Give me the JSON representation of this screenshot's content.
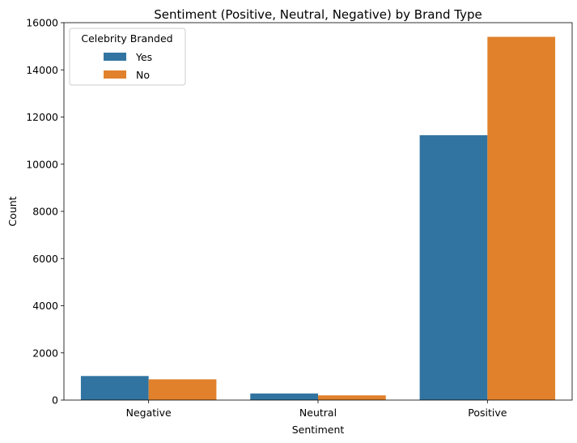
{
  "chart_data": {
    "type": "bar",
    "title": "Sentiment (Positive, Neutral, Negative) by Brand Type",
    "xlabel": "Sentiment",
    "ylabel": "Count",
    "categories": [
      "Negative",
      "Neutral",
      "Positive"
    ],
    "series": [
      {
        "name": "Yes",
        "color": "#3274a1",
        "values": [
          1020,
          280,
          11230
        ]
      },
      {
        "name": "No",
        "color": "#e1812c",
        "values": [
          880,
          200,
          15400
        ]
      }
    ],
    "ylim": [
      0,
      16000
    ],
    "yticks": [
      0,
      2000,
      4000,
      6000,
      8000,
      10000,
      12000,
      14000,
      16000
    ],
    "grid": false,
    "legend": {
      "title": "Celebrity Branded",
      "placement": "top-left"
    }
  }
}
